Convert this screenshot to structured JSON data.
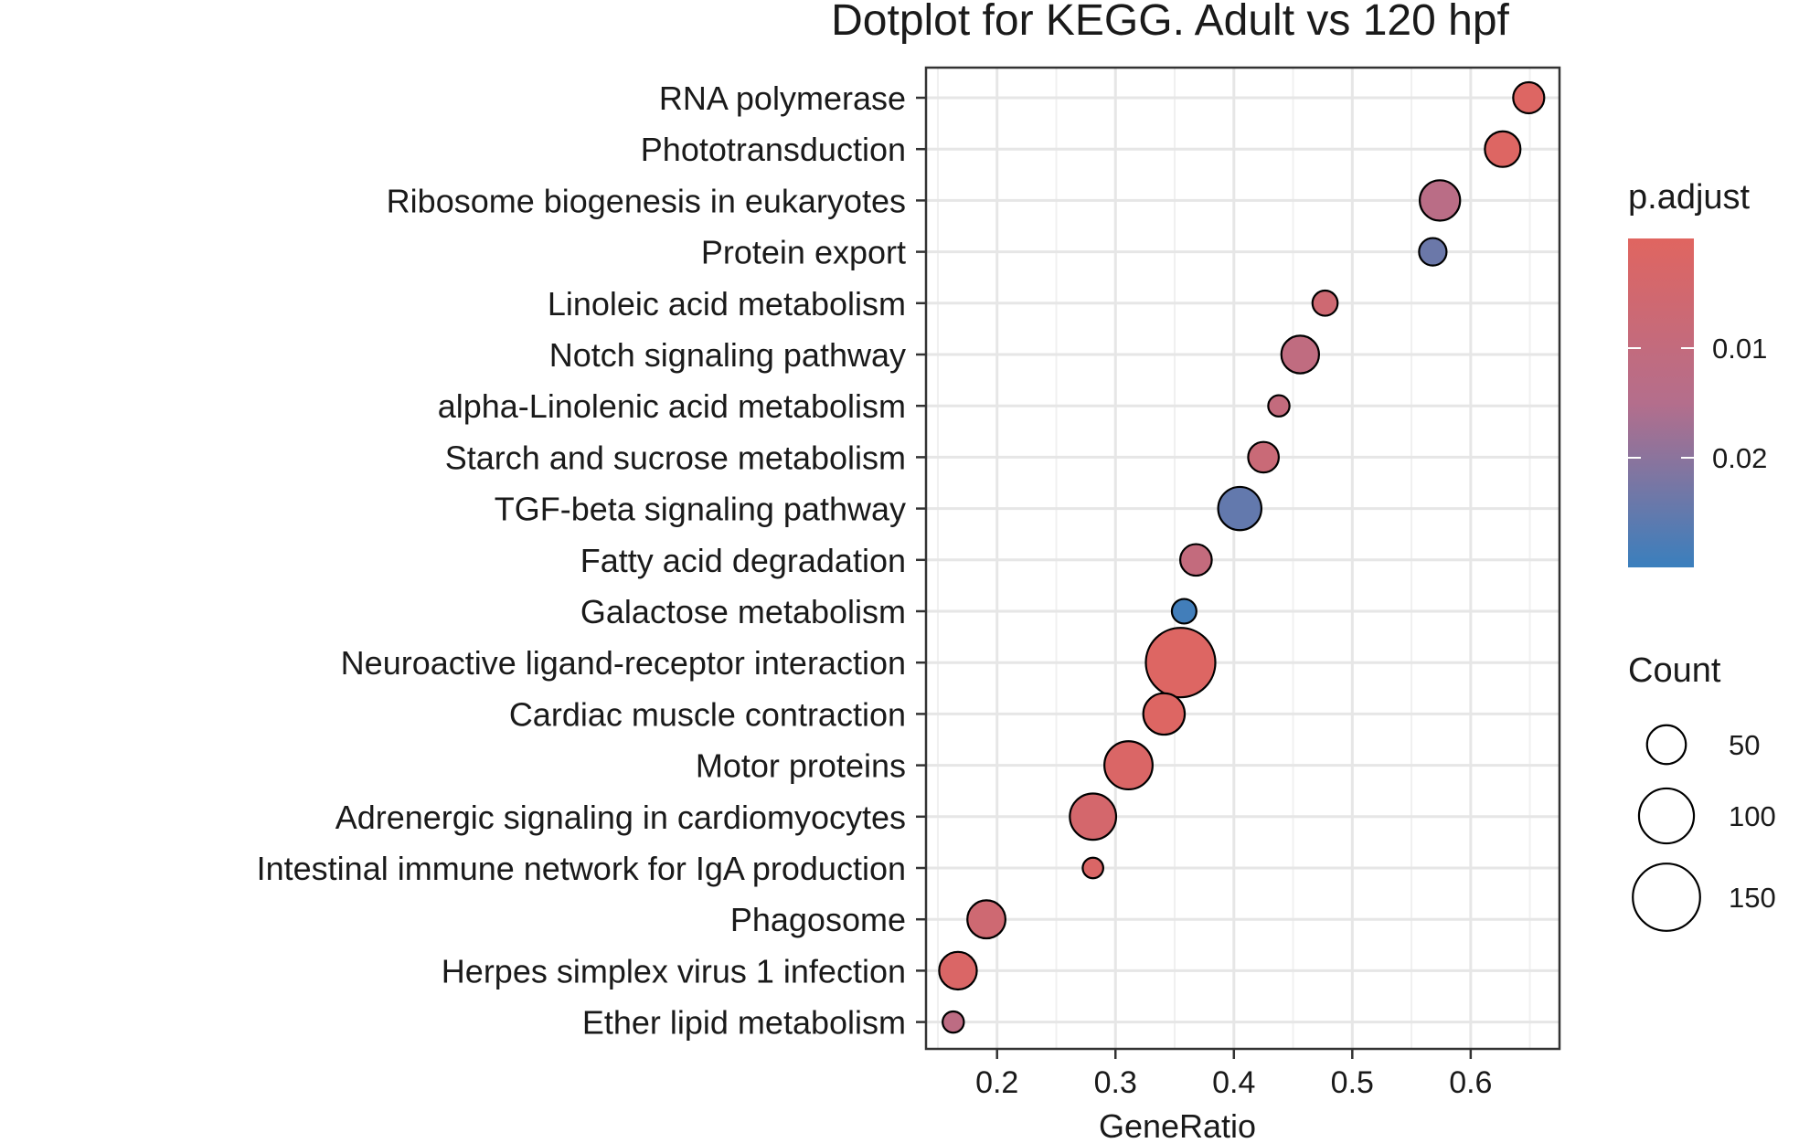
{
  "chart_data": {
    "type": "scatter",
    "title": "Dotplot for KEGG. Adult vs 120 hpf",
    "xlabel": "GeneRatio",
    "ylabel": "",
    "xlim": [
      0.14,
      0.675
    ],
    "xticks": [
      0.2,
      0.3,
      0.4,
      0.5,
      0.6
    ],
    "xtick_labels": [
      "0.2",
      "0.3",
      "0.4",
      "0.5",
      "0.6"
    ],
    "grid": true,
    "categories": [
      "RNA polymerase",
      "Phototransduction",
      "Ribosome biogenesis in eukaryotes",
      "Protein export",
      "Linoleic acid metabolism",
      "Notch signaling pathway",
      "alpha-Linolenic acid metabolism",
      "Starch and sucrose metabolism",
      "TGF-beta signaling pathway",
      "Fatty acid degradation",
      "Galactose metabolism",
      "Neuroactive ligand-receptor interaction",
      "Cardiac muscle contraction",
      "Motor proteins",
      "Adrenergic signaling in cardiomyocytes",
      "Intestinal immune network for IgA production",
      "Phagosome",
      "Herpes simplex virus 1 infection",
      "Ether lipid metabolism"
    ],
    "points": [
      {
        "term": "RNA polymerase",
        "gene_ratio": 0.649,
        "count": 32,
        "p_adjust": 0.001
      },
      {
        "term": "Phototransduction",
        "gene_ratio": 0.627,
        "count": 42,
        "p_adjust": 0.001
      },
      {
        "term": "Ribosome biogenesis in eukaryotes",
        "gene_ratio": 0.574,
        "count": 54,
        "p_adjust": 0.013
      },
      {
        "term": "Protein export",
        "gene_ratio": 0.568,
        "count": 25,
        "p_adjust": 0.024
      },
      {
        "term": "Linoleic acid metabolism",
        "gene_ratio": 0.477,
        "count": 21,
        "p_adjust": 0.006
      },
      {
        "term": "Notch signaling pathway",
        "gene_ratio": 0.456,
        "count": 47,
        "p_adjust": 0.011
      },
      {
        "term": "alpha-Linolenic acid metabolism",
        "gene_ratio": 0.438,
        "count": 15,
        "p_adjust": 0.01
      },
      {
        "term": "Starch and sucrose metabolism",
        "gene_ratio": 0.425,
        "count": 31,
        "p_adjust": 0.008
      },
      {
        "term": "TGF-beta signaling pathway",
        "gene_ratio": 0.405,
        "count": 62,
        "p_adjust": 0.025
      },
      {
        "term": "Fatty acid degradation",
        "gene_ratio": 0.368,
        "count": 33,
        "p_adjust": 0.01
      },
      {
        "term": "Galactose metabolism",
        "gene_ratio": 0.358,
        "count": 20,
        "p_adjust": 0.029
      },
      {
        "term": "Neuroactive ligand-receptor interaction",
        "gene_ratio": 0.355,
        "count": 160,
        "p_adjust": 0.001
      },
      {
        "term": "Cardiac muscle contraction",
        "gene_ratio": 0.341,
        "count": 57,
        "p_adjust": 0.001
      },
      {
        "term": "Motor proteins",
        "gene_ratio": 0.311,
        "count": 77,
        "p_adjust": 0.002
      },
      {
        "term": "Adrenergic signaling in cardiomyocytes",
        "gene_ratio": 0.281,
        "count": 71,
        "p_adjust": 0.004
      },
      {
        "term": "Intestinal immune network for IgA production",
        "gene_ratio": 0.281,
        "count": 14,
        "p_adjust": 0.002
      },
      {
        "term": "Phagosome",
        "gene_ratio": 0.191,
        "count": 48,
        "p_adjust": 0.006
      },
      {
        "term": "Herpes simplex virus 1 infection",
        "gene_ratio": 0.167,
        "count": 47,
        "p_adjust": 0.002
      },
      {
        "term": "Ether lipid metabolism",
        "gene_ratio": 0.163,
        "count": 15,
        "p_adjust": 0.012
      }
    ],
    "color_legend": {
      "title": "p.adjust",
      "range": [
        0,
        0.03
      ],
      "ticks": [
        0.01,
        0.02
      ],
      "tick_labels": [
        "0.01",
        "0.02"
      ],
      "low_color": "#e06560",
      "high_color": "#3a7fbd"
    },
    "size_legend": {
      "title": "Count",
      "values": [
        50,
        100,
        150
      ],
      "labels": [
        "50",
        "100",
        "150"
      ]
    }
  }
}
